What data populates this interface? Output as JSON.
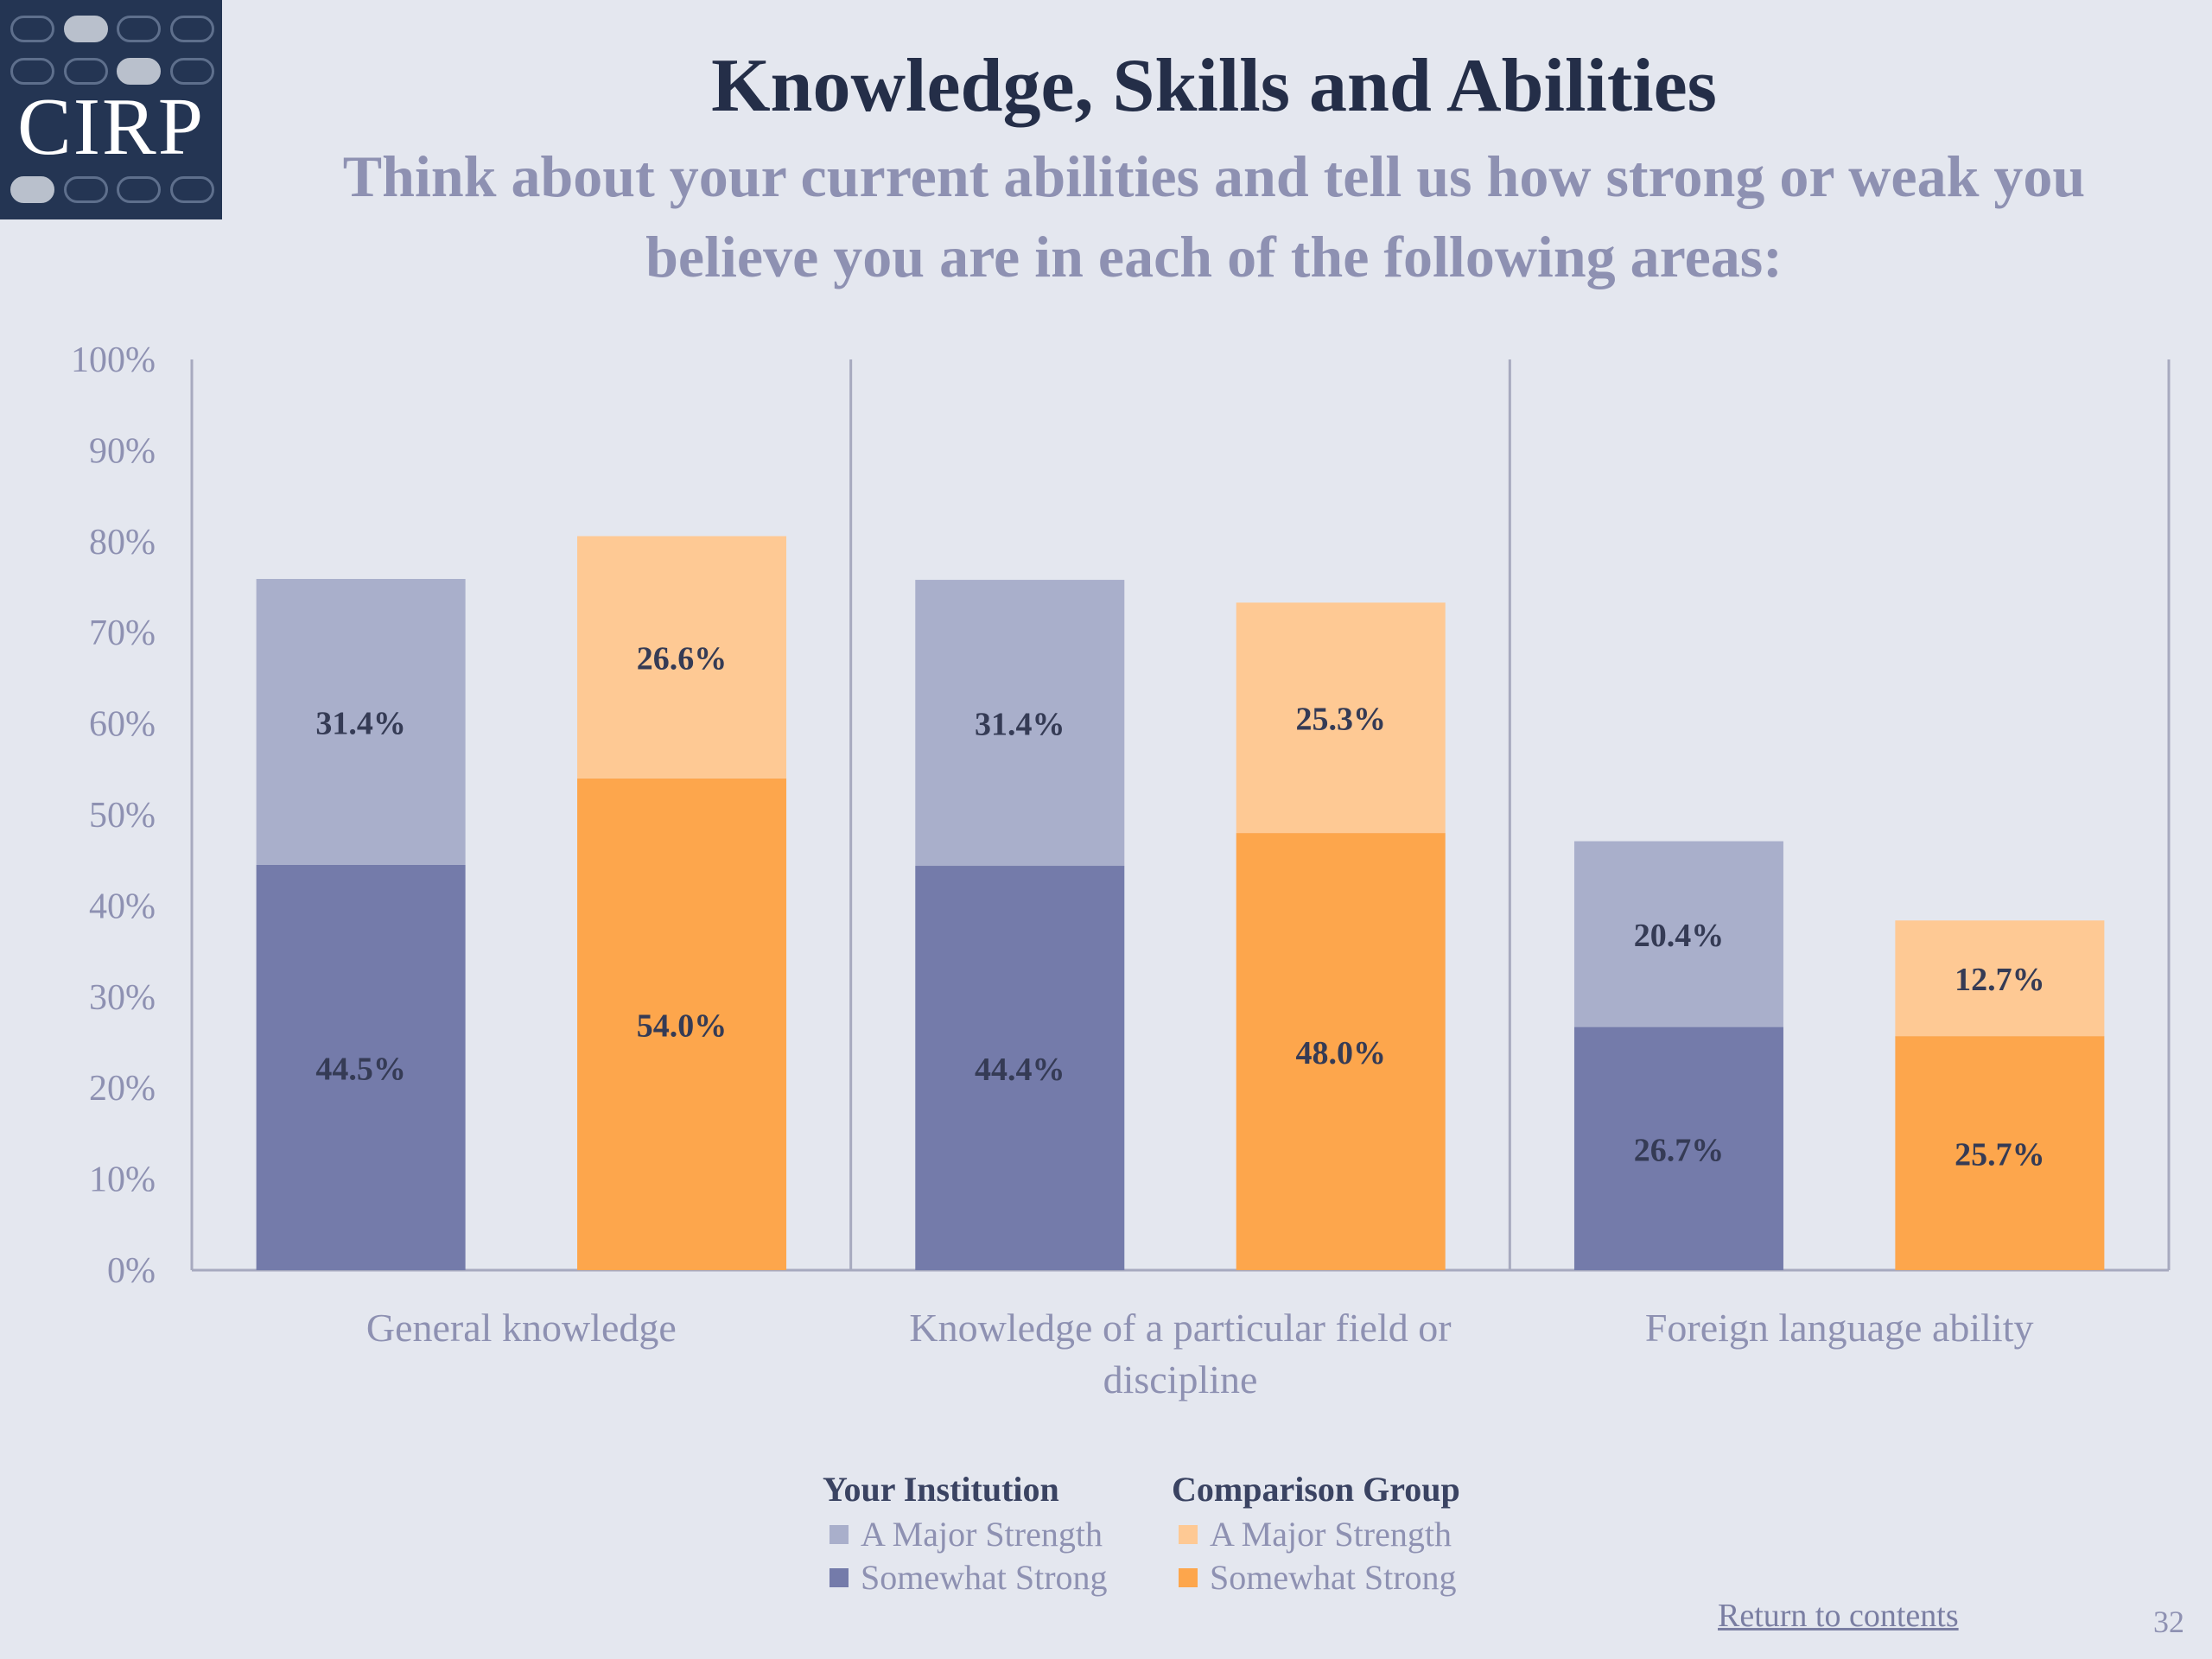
{
  "logo": {
    "text": "CIRP"
  },
  "header": {
    "title": "Knowledge, Skills and Abilities",
    "subtitle": "Think about your current abilities and tell us how strong or weak you believe you are in each of the following areas:"
  },
  "legend": {
    "groups": [
      {
        "heading": "Your Institution",
        "items": [
          {
            "label": "A Major Strength",
            "color": "#a9afcb"
          },
          {
            "label": "Somewhat Strong",
            "color": "#747baa"
          }
        ]
      },
      {
        "heading": "Comparison Group",
        "items": [
          {
            "label": "A Major Strength",
            "color": "#fec994"
          },
          {
            "label": "Somewhat Strong",
            "color": "#fda64c"
          }
        ]
      }
    ]
  },
  "footer": {
    "return_link": "Return to contents",
    "page_number": "32"
  },
  "colors": {
    "inst_major": "#a9afcb",
    "inst_somewhat": "#747baa",
    "comp_major": "#fec994",
    "comp_somewhat": "#fda64c",
    "axis": "#a7aabf",
    "tick_text": "#8e91b2",
    "label_text": "#353b55"
  },
  "chart_data": {
    "type": "bar",
    "stacked": true,
    "title": "Knowledge, Skills and Abilities",
    "categories": [
      [
        "General knowledge"
      ],
      [
        "Knowledge of a particular field or",
        "discipline"
      ],
      [
        "Foreign language ability"
      ]
    ],
    "ylim": [
      0,
      100
    ],
    "yticks": [
      "0%",
      "10%",
      "20%",
      "30%",
      "40%",
      "50%",
      "60%",
      "70%",
      "80%",
      "90%",
      "100%"
    ],
    "groups": [
      "Your Institution",
      "Comparison Group"
    ],
    "series": [
      {
        "name": "Somewhat Strong",
        "group": "Your Institution",
        "values": [
          44.5,
          44.4,
          26.7
        ],
        "labels": [
          "44.5%",
          "44.4%",
          "26.7%"
        ]
      },
      {
        "name": "A Major Strength",
        "group": "Your Institution",
        "values": [
          31.4,
          31.4,
          20.4
        ],
        "labels": [
          "31.4%",
          "31.4%",
          "20.4%"
        ]
      },
      {
        "name": "Somewhat Strong",
        "group": "Comparison Group",
        "values": [
          54.0,
          48.0,
          25.7
        ],
        "labels": [
          "54.0%",
          "48.0%",
          "25.7%"
        ]
      },
      {
        "name": "A Major Strength",
        "group": "Comparison Group",
        "values": [
          26.6,
          25.3,
          12.7
        ],
        "labels": [
          "26.6%",
          "25.3%",
          "12.7%"
        ]
      }
    ]
  }
}
